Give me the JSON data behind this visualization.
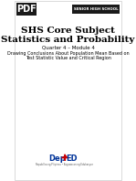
{
  "bg_color": "#ffffff",
  "header_bar_color": "#1a1a1a",
  "header_text": "SENIOR HIGH SCHOOL",
  "header_text_color": "#ffffff",
  "pdf_label": "PDF",
  "pdf_bg": "#1a1a1a",
  "pdf_text_color": "#ffffff",
  "title_line1": "SHS Core Subject",
  "title_line2": "Statistics and Probability",
  "subtitle_line1": "Quarter 4 – Module 4",
  "subtitle_line2": "Drawing Conclusions About Population Mean Based on",
  "subtitle_line3": "Test Statistic Value and Critical Region",
  "deped_D_color": "#003399",
  "deped_E_color": "#cc0000",
  "deped_star_color": "#cc0000",
  "deped_text_color": "#003399",
  "border_color": "#cccccc"
}
